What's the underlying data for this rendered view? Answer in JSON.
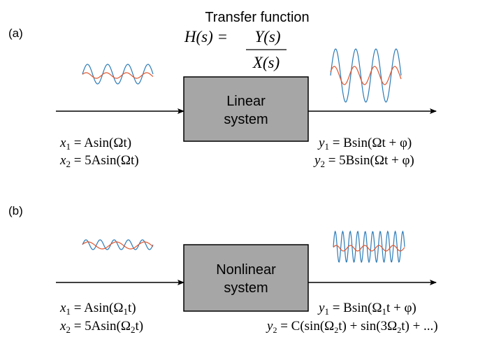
{
  "colors": {
    "input_blue": "#2c7bb6",
    "input_red": "#e0562e",
    "box_fill": "#a6a6a6"
  },
  "header": {
    "title": "Transfer function",
    "eq_lhs": "H(s) = ",
    "eq_num": "Y(s)",
    "eq_den": "X(s)"
  },
  "panel_a": {
    "label": "(a)",
    "box_line1": "Linear",
    "box_line2": "system",
    "x1": {
      "sym": "x",
      "sub": "1",
      "rhs": " = Asin(Ωt)"
    },
    "x2": {
      "sym": "x",
      "sub": "2",
      "rhs": " = 5Asin(Ωt)"
    },
    "y1": {
      "sym": "y",
      "sub": "1",
      "rhs": " = Bsin(Ωt + φ)"
    },
    "y2": {
      "sym": "y",
      "sub": "2",
      "rhs": " = 5Bsin(Ωt + φ)"
    }
  },
  "panel_b": {
    "label": "(b)",
    "box_line1": "Nonlinear",
    "box_line2": "system",
    "x1": {
      "sym": "x",
      "sub": "1",
      "pre": " = Asin(Ω",
      "sub2": "1",
      "post": "t)"
    },
    "x2": {
      "sym": "x",
      "sub": "2",
      "pre": " = 5Asin(Ω",
      "sub2": "2",
      "post": "t)"
    },
    "y1": {
      "sym": "y",
      "sub": "1",
      "pre": " = Bsin(Ω",
      "sub2": "1",
      "post": "t + φ)"
    },
    "y2": {
      "sym": "y",
      "sub": "2",
      "pre": " = C(sin(Ω",
      "sub2": "2",
      "mid": "t) + sin(3Ω",
      "sub3": "2",
      "post": "t) + ...)"
    }
  }
}
